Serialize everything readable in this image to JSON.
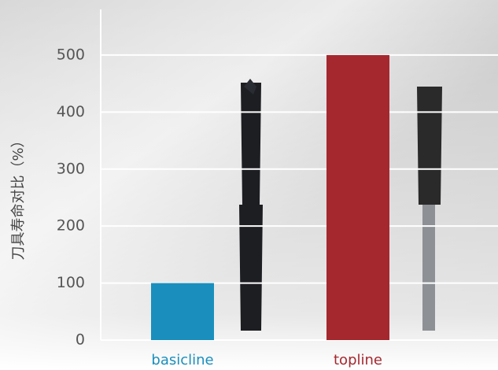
{
  "chart_data": {
    "type": "bar",
    "y_axis_label": "刀具寿命对比（%）",
    "categories": [
      "basicline",
      "topline"
    ],
    "values": [
      100,
      500
    ],
    "colors": [
      "#1a8fbd",
      "#a5282f"
    ],
    "ylim": [
      0,
      580
    ],
    "yticks": [
      0,
      100,
      200,
      300,
      400,
      500
    ],
    "grid": true
  }
}
